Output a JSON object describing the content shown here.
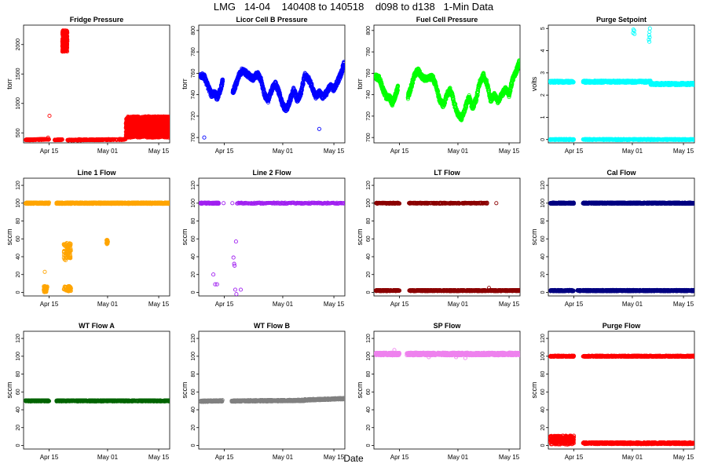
{
  "figure": {
    "title": "LMG   14-04    140408 to 140518    d098 to d138   1-Min Data",
    "xlabel": "Date"
  },
  "chart_data": [
    {
      "type": "scatter",
      "title": "Fridge Pressure",
      "ylabel": "torr",
      "xlim": [
        98,
        138
      ],
      "ylim": [
        330,
        2330
      ],
      "yticks": [
        500,
        1000,
        1500,
        2000
      ],
      "yticklabels": [
        "500",
        "1000",
        "1500",
        "2000"
      ],
      "xticks": [
        105,
        121,
        135
      ],
      "xticklabels": [
        "Apr 15",
        "May 01",
        "May 15"
      ],
      "color": "#ff0000",
      "marker": "circle",
      "segments": [
        {
          "x0": 98.5,
          "x1": 105.0,
          "y0": 380,
          "y1": 390,
          "jitter": 8,
          "n": 160
        },
        {
          "x0": 106.5,
          "x1": 108.6,
          "y0": 380,
          "y1": 385,
          "jitter": 6,
          "n": 60
        },
        {
          "x0": 110.0,
          "x1": 126.0,
          "y0": 378,
          "y1": 388,
          "jitter": 8,
          "n": 320
        },
        {
          "x0": 126.0,
          "x1": 138.0,
          "y0": 420,
          "y1": 780,
          "spread": true,
          "n": 1600
        }
      ],
      "clusters": [
        {
          "x0": 108.6,
          "x1": 110.0,
          "y0": 1880,
          "y1": 2240,
          "n": 260
        }
      ],
      "points": [
        [
          105.1,
          790
        ],
        [
          104.7,
          420
        ],
        [
          113.2,
          392
        ]
      ]
    },
    {
      "type": "scatter",
      "title": "Licor Cell B Pressure",
      "ylabel": "torr",
      "xlim": [
        98,
        138
      ],
      "ylim": [
        695,
        805
      ],
      "yticks": [
        700,
        720,
        740,
        760,
        780,
        800
      ],
      "yticklabels": [
        "700",
        "720",
        "740",
        "760",
        "780",
        "800"
      ],
      "xticks": [
        105,
        121,
        135
      ],
      "xticklabels": [
        "Apr 15",
        "May 01",
        "May 15"
      ],
      "color": "#0000ff",
      "marker": "circle",
      "lines": [
        {
          "x": [
            98.4,
            99.5,
            100.5,
            101.5,
            102.3,
            103.0,
            104.0,
            104.6
          ],
          "y": [
            758,
            757,
            748,
            740,
            742,
            737,
            745,
            754
          ],
          "jitter": 2.5
        },
        {
          "x": [
            107.3,
            108.0,
            109.0,
            110.0,
            111.0,
            112.0,
            113.0,
            114.0,
            115.0,
            116.0,
            117.0,
            118.0,
            119.0,
            120.0,
            121.0,
            122.0,
            123.0,
            124.0,
            125.0,
            126.0,
            127.0,
            128.0,
            129.0,
            130.0,
            131.0,
            132.0,
            133.0,
            134.0,
            135.0,
            136.0,
            137.0,
            137.8
          ],
          "y": [
            742,
            748,
            758,
            763,
            760,
            757,
            755,
            760,
            754,
            740,
            735,
            745,
            750,
            742,
            730,
            726,
            735,
            745,
            735,
            742,
            758,
            755,
            748,
            738,
            742,
            738,
            742,
            748,
            745,
            752,
            760,
            770
          ],
          "jitter": 2.5
        }
      ],
      "points": [
        [
          99.5,
          700
        ],
        [
          131.0,
          708
        ]
      ]
    },
    {
      "type": "scatter",
      "title": "Fuel Cell Pressure",
      "ylabel": "torr",
      "xlim": [
        98,
        138
      ],
      "ylim": [
        695,
        805
      ],
      "yticks": [
        700,
        720,
        740,
        760,
        780,
        800
      ],
      "yticklabels": [
        "700",
        "720",
        "740",
        "760",
        "780",
        "800"
      ],
      "xticks": [
        105,
        121,
        135
      ],
      "xticklabels": [
        "Apr 15",
        "May 01",
        "May 15"
      ],
      "color": "#00ff00",
      "marker": "circle",
      "lines": [
        {
          "x": [
            98.4,
            99.5,
            100.5,
            101.5,
            102.3,
            103.0,
            104.0,
            104.6
          ],
          "y": [
            757,
            755,
            745,
            737,
            738,
            732,
            740,
            747
          ],
          "jitter": 2.5
        },
        {
          "x": [
            107.3,
            108.0,
            109.0,
            110.0,
            111.0,
            112.0,
            113.0,
            114.0,
            115.0,
            116.0,
            117.0,
            118.0,
            119.0,
            120.0,
            121.0,
            122.0,
            123.0,
            124.0,
            125.0,
            126.0,
            127.0,
            128.0,
            129.0,
            130.0,
            131.0,
            132.0,
            133.0,
            134.0,
            135.0,
            136.0,
            137.0,
            137.8
          ],
          "y": [
            738,
            745,
            757,
            763,
            757,
            755,
            755,
            757,
            748,
            735,
            730,
            740,
            745,
            732,
            722,
            718,
            728,
            738,
            728,
            736,
            752,
            758,
            750,
            735,
            740,
            734,
            740,
            745,
            740,
            755,
            762,
            770
          ],
          "jitter": 2.5
        }
      ],
      "points": []
    },
    {
      "type": "scatter",
      "title": "Purge Setpoint",
      "ylabel": "volts",
      "xlim": [
        98,
        138
      ],
      "ylim": [
        -0.15,
        5.15
      ],
      "yticks": [
        0,
        1,
        2,
        3,
        4,
        5
      ],
      "yticklabels": [
        "0",
        "1",
        "2",
        "3",
        "4",
        "5"
      ],
      "xticks": [
        105,
        121,
        135
      ],
      "xticklabels": [
        "Apr 15",
        "May 01",
        "May 15"
      ],
      "color": "#00ffff",
      "marker": "circle",
      "segments": [
        {
          "x0": 98.5,
          "x1": 105.0,
          "y0": 2.6,
          "y1": 2.6,
          "jitter": 0.05,
          "n": 160
        },
        {
          "x0": 107.5,
          "x1": 126.0,
          "y0": 2.6,
          "y1": 2.6,
          "jitter": 0.05,
          "n": 420
        },
        {
          "x0": 126.0,
          "x1": 138.0,
          "y0": 2.5,
          "y1": 2.5,
          "jitter": 0.05,
          "n": 300
        },
        {
          "x0": 98.5,
          "x1": 105.0,
          "y0": 0.0,
          "y1": 0.0,
          "jitter": 0.02,
          "n": 160
        },
        {
          "x0": 107.5,
          "x1": 138.0,
          "y0": 0.0,
          "y1": 0.0,
          "jitter": 0.02,
          "n": 700
        }
      ],
      "points": [
        [
          121.2,
          4.8
        ],
        [
          121.3,
          4.95
        ],
        [
          121.5,
          4.9
        ],
        [
          121.6,
          4.75
        ],
        [
          125.5,
          4.5
        ],
        [
          125.6,
          4.7
        ],
        [
          125.7,
          4.85
        ],
        [
          125.8,
          5.0
        ],
        [
          125.65,
          4.4
        ],
        [
          125.75,
          4.6
        ]
      ]
    },
    {
      "type": "scatter",
      "title": "Line 1 Flow",
      "ylabel": "sccm",
      "xlim": [
        98,
        138
      ],
      "ylim": [
        -4,
        128
      ],
      "yticks": [
        0,
        20,
        40,
        60,
        80,
        100,
        120
      ],
      "yticklabels": [
        "0",
        "20",
        "40",
        "60",
        "80",
        "100",
        "120"
      ],
      "xticks": [
        105,
        121,
        135
      ],
      "xticklabels": [
        "Apr 15",
        "May 01",
        "May 15"
      ],
      "color": "#ffa500",
      "marker": "circle",
      "segments": [
        {
          "x0": 98.5,
          "x1": 105.0,
          "y0": 100,
          "y1": 100,
          "jitter": 0.8,
          "n": 160
        },
        {
          "x0": 107.0,
          "x1": 138.0,
          "y0": 100,
          "y1": 100,
          "jitter": 0.8,
          "n": 780
        }
      ],
      "clusters": [
        {
          "x0": 103.5,
          "x1": 104.5,
          "y0": 0,
          "y1": 7,
          "n": 40
        },
        {
          "x0": 109.0,
          "x1": 111.0,
          "y0": 1,
          "y1": 7,
          "n": 40
        },
        {
          "x0": 109.0,
          "x1": 111.0,
          "y0": 38,
          "y1": 56,
          "n": 70
        },
        {
          "x0": 120.6,
          "x1": 121.1,
          "y0": 54,
          "y1": 59,
          "n": 20
        }
      ],
      "points": [
        [
          103.8,
          23
        ],
        [
          109.2,
          37
        ],
        [
          109.5,
          36
        ]
      ]
    },
    {
      "type": "scatter",
      "title": "Line 2 Flow",
      "ylabel": "sccm",
      "xlim": [
        98,
        138
      ],
      "ylim": [
        -4,
        128
      ],
      "yticks": [
        0,
        20,
        40,
        60,
        80,
        100,
        120
      ],
      "yticklabels": [
        "0",
        "20",
        "40",
        "60",
        "80",
        "100",
        "120"
      ],
      "xticks": [
        105,
        121,
        135
      ],
      "xticklabels": [
        "Apr 15",
        "May 01",
        "May 15"
      ],
      "color": "#a020f0",
      "marker": "circle",
      "segments": [
        {
          "x0": 98.5,
          "x1": 103.5,
          "y0": 100,
          "y1": 100,
          "jitter": 0.6,
          "n": 120
        },
        {
          "x0": 108.5,
          "x1": 138.0,
          "y0": 100,
          "y1": 100,
          "jitter": 0.6,
          "n": 150,
          "sparse": true
        }
      ],
      "points": [
        [
          104.8,
          100
        ],
        [
          107.2,
          100
        ],
        [
          102.0,
          20
        ],
        [
          102.5,
          9
        ],
        [
          103.0,
          9
        ],
        [
          107.5,
          39
        ],
        [
          107.7,
          32
        ],
        [
          107.8,
          30
        ],
        [
          108.2,
          57
        ],
        [
          108.0,
          3
        ],
        [
          108.3,
          -2
        ],
        [
          109.5,
          3
        ]
      ]
    },
    {
      "type": "scatter",
      "title": "LT Flow",
      "ylabel": "sccm",
      "xlim": [
        98,
        138
      ],
      "ylim": [
        -4,
        128
      ],
      "yticks": [
        0,
        20,
        40,
        60,
        80,
        100,
        120
      ],
      "yticklabels": [
        "0",
        "20",
        "40",
        "60",
        "80",
        "100",
        "120"
      ],
      "xticks": [
        105,
        121,
        135
      ],
      "xticklabels": [
        "Apr 15",
        "May 01",
        "May 15"
      ],
      "color": "#8b0000",
      "marker": "circle",
      "segments": [
        {
          "x0": 98.5,
          "x1": 105.0,
          "y0": 100,
          "y1": 100,
          "jitter": 0.5,
          "n": 110
        },
        {
          "x0": 107.5,
          "x1": 129.0,
          "y0": 100,
          "y1": 100,
          "jitter": 0.5,
          "n": 260
        },
        {
          "x0": 98.5,
          "x1": 105.0,
          "y0": 2,
          "y1": 2,
          "jitter": 0.6,
          "n": 160
        },
        {
          "x0": 107.5,
          "x1": 138.0,
          "y0": 2,
          "y1": 2,
          "jitter": 0.6,
          "n": 700
        }
      ],
      "points": [
        [
          131.5,
          100
        ],
        [
          129.5,
          5
        ]
      ]
    },
    {
      "type": "scatter",
      "title": "Cal Flow",
      "ylabel": "sccm",
      "xlim": [
        98,
        138
      ],
      "ylim": [
        -4,
        128
      ],
      "yticks": [
        0,
        20,
        40,
        60,
        80,
        100,
        120
      ],
      "yticklabels": [
        "0",
        "20",
        "40",
        "60",
        "80",
        "100",
        "120"
      ],
      "xticks": [
        105,
        121,
        135
      ],
      "xticklabels": [
        "Apr 15",
        "May 01",
        "May 15"
      ],
      "color": "#000080",
      "marker": "circle",
      "segments": [
        {
          "x0": 98.5,
          "x1": 105.0,
          "y0": 100,
          "y1": 100,
          "jitter": 0.7,
          "n": 160
        },
        {
          "x0": 107.5,
          "x1": 138.0,
          "y0": 100,
          "y1": 100,
          "jitter": 0.7,
          "n": 700
        },
        {
          "x0": 98.5,
          "x1": 105.0,
          "y0": 2,
          "y1": 2,
          "jitter": 0.7,
          "n": 160
        },
        {
          "x0": 106.0,
          "x1": 107.0,
          "y0": 2,
          "y1": 2,
          "jitter": 0.7,
          "n": 20
        },
        {
          "x0": 107.5,
          "x1": 138.0,
          "y0": 2,
          "y1": 2,
          "jitter": 0.7,
          "n": 700
        }
      ],
      "points": []
    },
    {
      "type": "scatter",
      "title": "WT Flow A",
      "ylabel": "sccm",
      "xlim": [
        98,
        138
      ],
      "ylim": [
        -4,
        128
      ],
      "yticks": [
        0,
        20,
        40,
        60,
        80,
        100,
        120
      ],
      "yticklabels": [
        "0",
        "20",
        "40",
        "60",
        "80",
        "100",
        "120"
      ],
      "xticks": [
        105,
        121,
        135
      ],
      "xticklabels": [
        "Apr 15",
        "May 01",
        "May 15"
      ],
      "color": "#006400",
      "marker": "circle",
      "segments": [
        {
          "x0": 98.5,
          "x1": 105.0,
          "y0": 50,
          "y1": 50,
          "jitter": 0.6,
          "n": 160
        },
        {
          "x0": 107.0,
          "x1": 138.0,
          "y0": 50,
          "y1": 50,
          "jitter": 0.6,
          "n": 780
        }
      ],
      "points": []
    },
    {
      "type": "scatter",
      "title": "WT Flow B",
      "ylabel": "sccm",
      "xlim": [
        98,
        138
      ],
      "ylim": [
        -4,
        128
      ],
      "yticks": [
        0,
        20,
        40,
        60,
        80,
        100,
        120
      ],
      "yticklabels": [
        "0",
        "20",
        "40",
        "60",
        "80",
        "100",
        "120"
      ],
      "xticks": [
        105,
        121,
        135
      ],
      "xticklabels": [
        "Apr 15",
        "May 01",
        "May 15"
      ],
      "color": "#808080",
      "marker": "circle",
      "segments": [
        {
          "x0": 98.5,
          "x1": 104.5,
          "y0": 49.5,
          "y1": 50,
          "jitter": 0.8,
          "n": 150
        },
        {
          "x0": 107.0,
          "x1": 127.0,
          "y0": 49.8,
          "y1": 50.5,
          "jitter": 0.8,
          "n": 500
        },
        {
          "x0": 127.0,
          "x1": 138.0,
          "y0": 51,
          "y1": 52.5,
          "jitter": 0.8,
          "n": 300
        }
      ],
      "points": []
    },
    {
      "type": "scatter",
      "title": "SP Flow",
      "ylabel": "sccm",
      "xlim": [
        98,
        138
      ],
      "ylim": [
        -4,
        128
      ],
      "yticks": [
        0,
        20,
        40,
        60,
        80,
        100,
        120
      ],
      "yticklabels": [
        "0",
        "20",
        "40",
        "60",
        "80",
        "100",
        "120"
      ],
      "xticks": [
        105,
        121,
        135
      ],
      "xticklabels": [
        "Apr 15",
        "May 01",
        "May 15"
      ],
      "color": "#ee82ee",
      "marker": "circle",
      "segments": [
        {
          "x0": 98.5,
          "x1": 105.0,
          "y0": 102.5,
          "y1": 102.5,
          "jitter": 1.5,
          "n": 200
        },
        {
          "x0": 107.0,
          "x1": 138.0,
          "y0": 102.5,
          "y1": 102.5,
          "jitter": 1.5,
          "n": 900
        }
      ],
      "points": [
        [
          103.6,
          107
        ],
        [
          113.0,
          99
        ],
        [
          120.5,
          99
        ],
        [
          123.0,
          98
        ]
      ]
    },
    {
      "type": "scatter",
      "title": "Purge Flow",
      "ylabel": "sccm",
      "xlim": [
        98,
        138
      ],
      "ylim": [
        -4,
        128
      ],
      "yticks": [
        0,
        20,
        40,
        60,
        80,
        100,
        120
      ],
      "yticklabels": [
        "0",
        "20",
        "40",
        "60",
        "80",
        "100",
        "120"
      ],
      "xticks": [
        105,
        121,
        135
      ],
      "xticklabels": [
        "Apr 15",
        "May 01",
        "May 15"
      ],
      "color": "#ff0000",
      "marker": "circle",
      "segments": [
        {
          "x0": 98.5,
          "x1": 105.0,
          "y0": 100,
          "y1": 100,
          "jitter": 0.6,
          "n": 160
        },
        {
          "x0": 107.5,
          "x1": 138.0,
          "y0": 100,
          "y1": 100,
          "jitter": 0.6,
          "n": 700
        },
        {
          "x0": 107.5,
          "x1": 138.0,
          "y0": 2.5,
          "y1": 2.5,
          "jitter": 1.0,
          "n": 700
        }
      ],
      "clusters": [
        {
          "x0": 98.5,
          "x1": 105.0,
          "y0": 1,
          "y1": 11,
          "n": 260
        }
      ],
      "points": []
    }
  ]
}
